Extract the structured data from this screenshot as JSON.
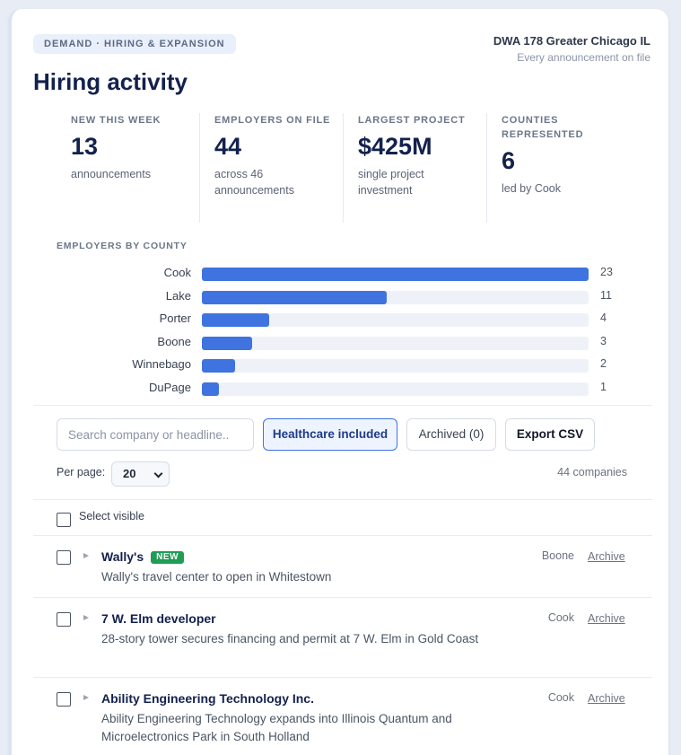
{
  "tag": "DEMAND · HIRING & EXPANSION",
  "meta": {
    "title": "DWA 178 Greater Chicago IL",
    "subtitle": "Every announcement on file"
  },
  "page_title": "Hiring activity",
  "stats": [
    {
      "label": "NEW THIS WEEK",
      "value": "13",
      "sub": "announcements"
    },
    {
      "label": "EMPLOYERS ON FILE",
      "value": "44",
      "sub": "across 46 announcements"
    },
    {
      "label": "LARGEST PROJECT",
      "value": "$425M",
      "sub": "single project investment"
    },
    {
      "label": "COUNTIES REPRESENTED",
      "value": "6",
      "sub": "led by Cook"
    }
  ],
  "chart_label": "EMPLOYERS BY COUNTY",
  "chart_data": {
    "type": "bar",
    "orientation": "horizontal",
    "categories": [
      "Cook",
      "Lake",
      "Porter",
      "Boone",
      "Winnebago",
      "DuPage"
    ],
    "values": [
      23,
      11,
      4,
      3,
      2,
      1
    ],
    "xlim": [
      0,
      23
    ],
    "colors": {
      "bar": "#3f73e0",
      "track": "#eef2f8"
    }
  },
  "toolbar": {
    "search_placeholder": "Search company or headline..",
    "healthcare": "Healthcare included",
    "archived": "Archived (0)",
    "export": "Export CSV"
  },
  "pagination": {
    "per_page_label": "Per page:",
    "per_page_value": "20",
    "count": "44 companies"
  },
  "select_visible": "Select visible",
  "archive_label": "Archive",
  "rows": [
    {
      "company": "Wally's",
      "badge": "NEW",
      "county": "Boone",
      "desc": "Wally's travel center to open in Whitestown"
    },
    {
      "company": "7 W. Elm developer",
      "badge": "",
      "county": "Cook",
      "desc": "28-story tower secures financing and permit at 7 W. Elm in Gold Coast"
    },
    {
      "company": "Ability Engineering Technology Inc.",
      "badge": "",
      "county": "Cook",
      "desc": "Ability Engineering Technology expands into Illinois Quantum and Microelectronics Park in South Holland"
    }
  ]
}
